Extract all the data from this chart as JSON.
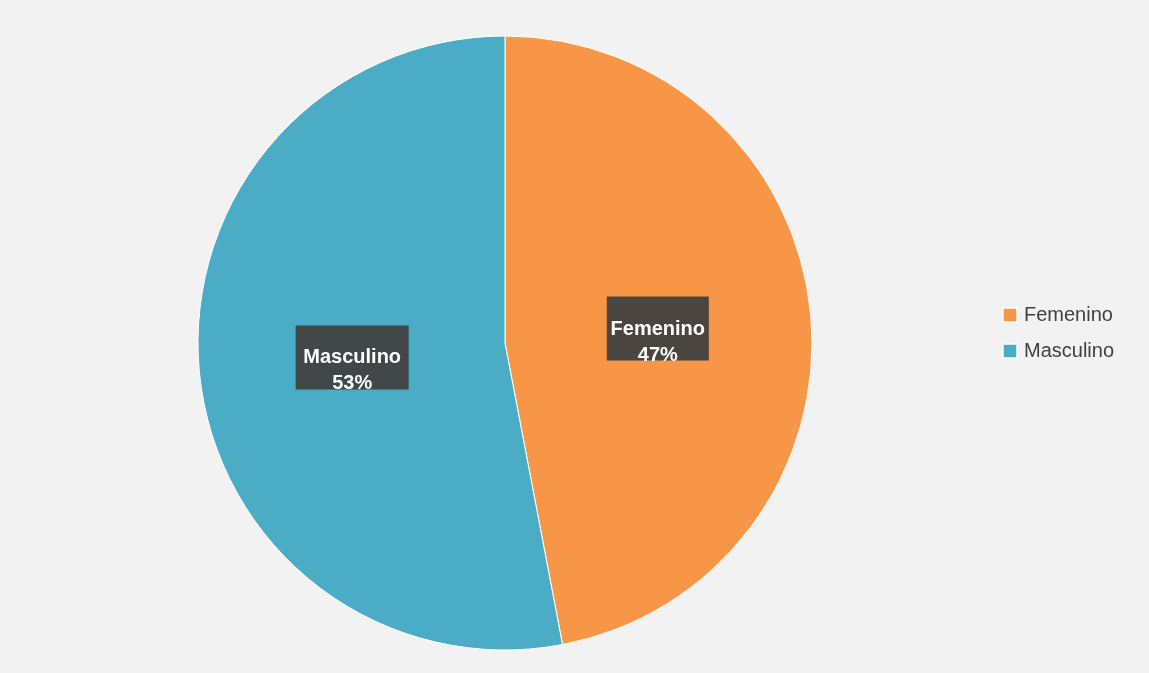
{
  "chart_data": {
    "type": "pie",
    "categories": [
      "Femenino",
      "Masculino"
    ],
    "values": [
      47,
      53
    ],
    "colors": [
      "#f79646",
      "#4bacc6"
    ],
    "value_labels": [
      "47%",
      "53%"
    ],
    "legend": "right"
  }
}
